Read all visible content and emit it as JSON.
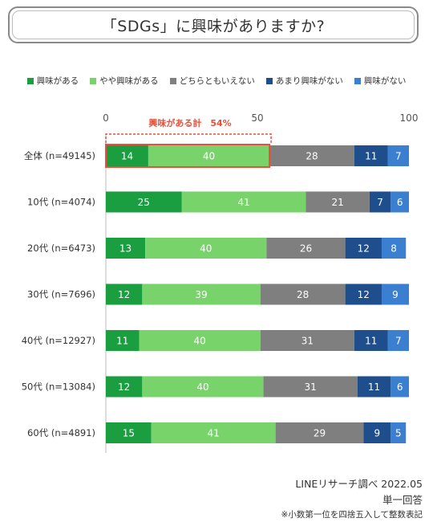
{
  "title": "「SDGs」に興味がありますか?",
  "footer": {
    "source": "LINEリサーチ調べ 2022.05",
    "answer_type": "単一回答",
    "note": "※小数第一位を四捨五入して整数表記"
  },
  "chart_data": {
    "type": "bar",
    "orientation": "horizontal",
    "stacked": true,
    "xlim": [
      0,
      100
    ],
    "x_ticks": [
      "0",
      "50",
      "100"
    ],
    "legend_placement": "top",
    "categories": [
      "全体 (n=49145)",
      "10代 (n=4074)",
      "20代 (n=6473)",
      "30代 (n=7696)",
      "40代 (n=12927)",
      "50代 (n=13084)",
      "60代 (n=4891)"
    ],
    "series": [
      {
        "name": "興味がある",
        "color": "#1a9e3f",
        "values": [
          14,
          25,
          13,
          12,
          11,
          12,
          15
        ]
      },
      {
        "name": "やや興味がある",
        "color": "#77d36a",
        "values": [
          40,
          41,
          40,
          39,
          40,
          40,
          41
        ]
      },
      {
        "name": "どちらともいえない",
        "color": "#7f7f7f",
        "values": [
          28,
          21,
          26,
          28,
          31,
          31,
          29
        ]
      },
      {
        "name": "あまり興味がない",
        "color": "#1f4e8c",
        "values": [
          11,
          7,
          12,
          12,
          11,
          11,
          9
        ]
      },
      {
        "name": "興味がない",
        "color": "#3a7fd0",
        "values": [
          7,
          6,
          8,
          9,
          7,
          6,
          5
        ]
      }
    ],
    "annotation": {
      "text": "興味がある計　54%",
      "color": "#e8503a",
      "category_index": 0,
      "value": 54
    }
  }
}
